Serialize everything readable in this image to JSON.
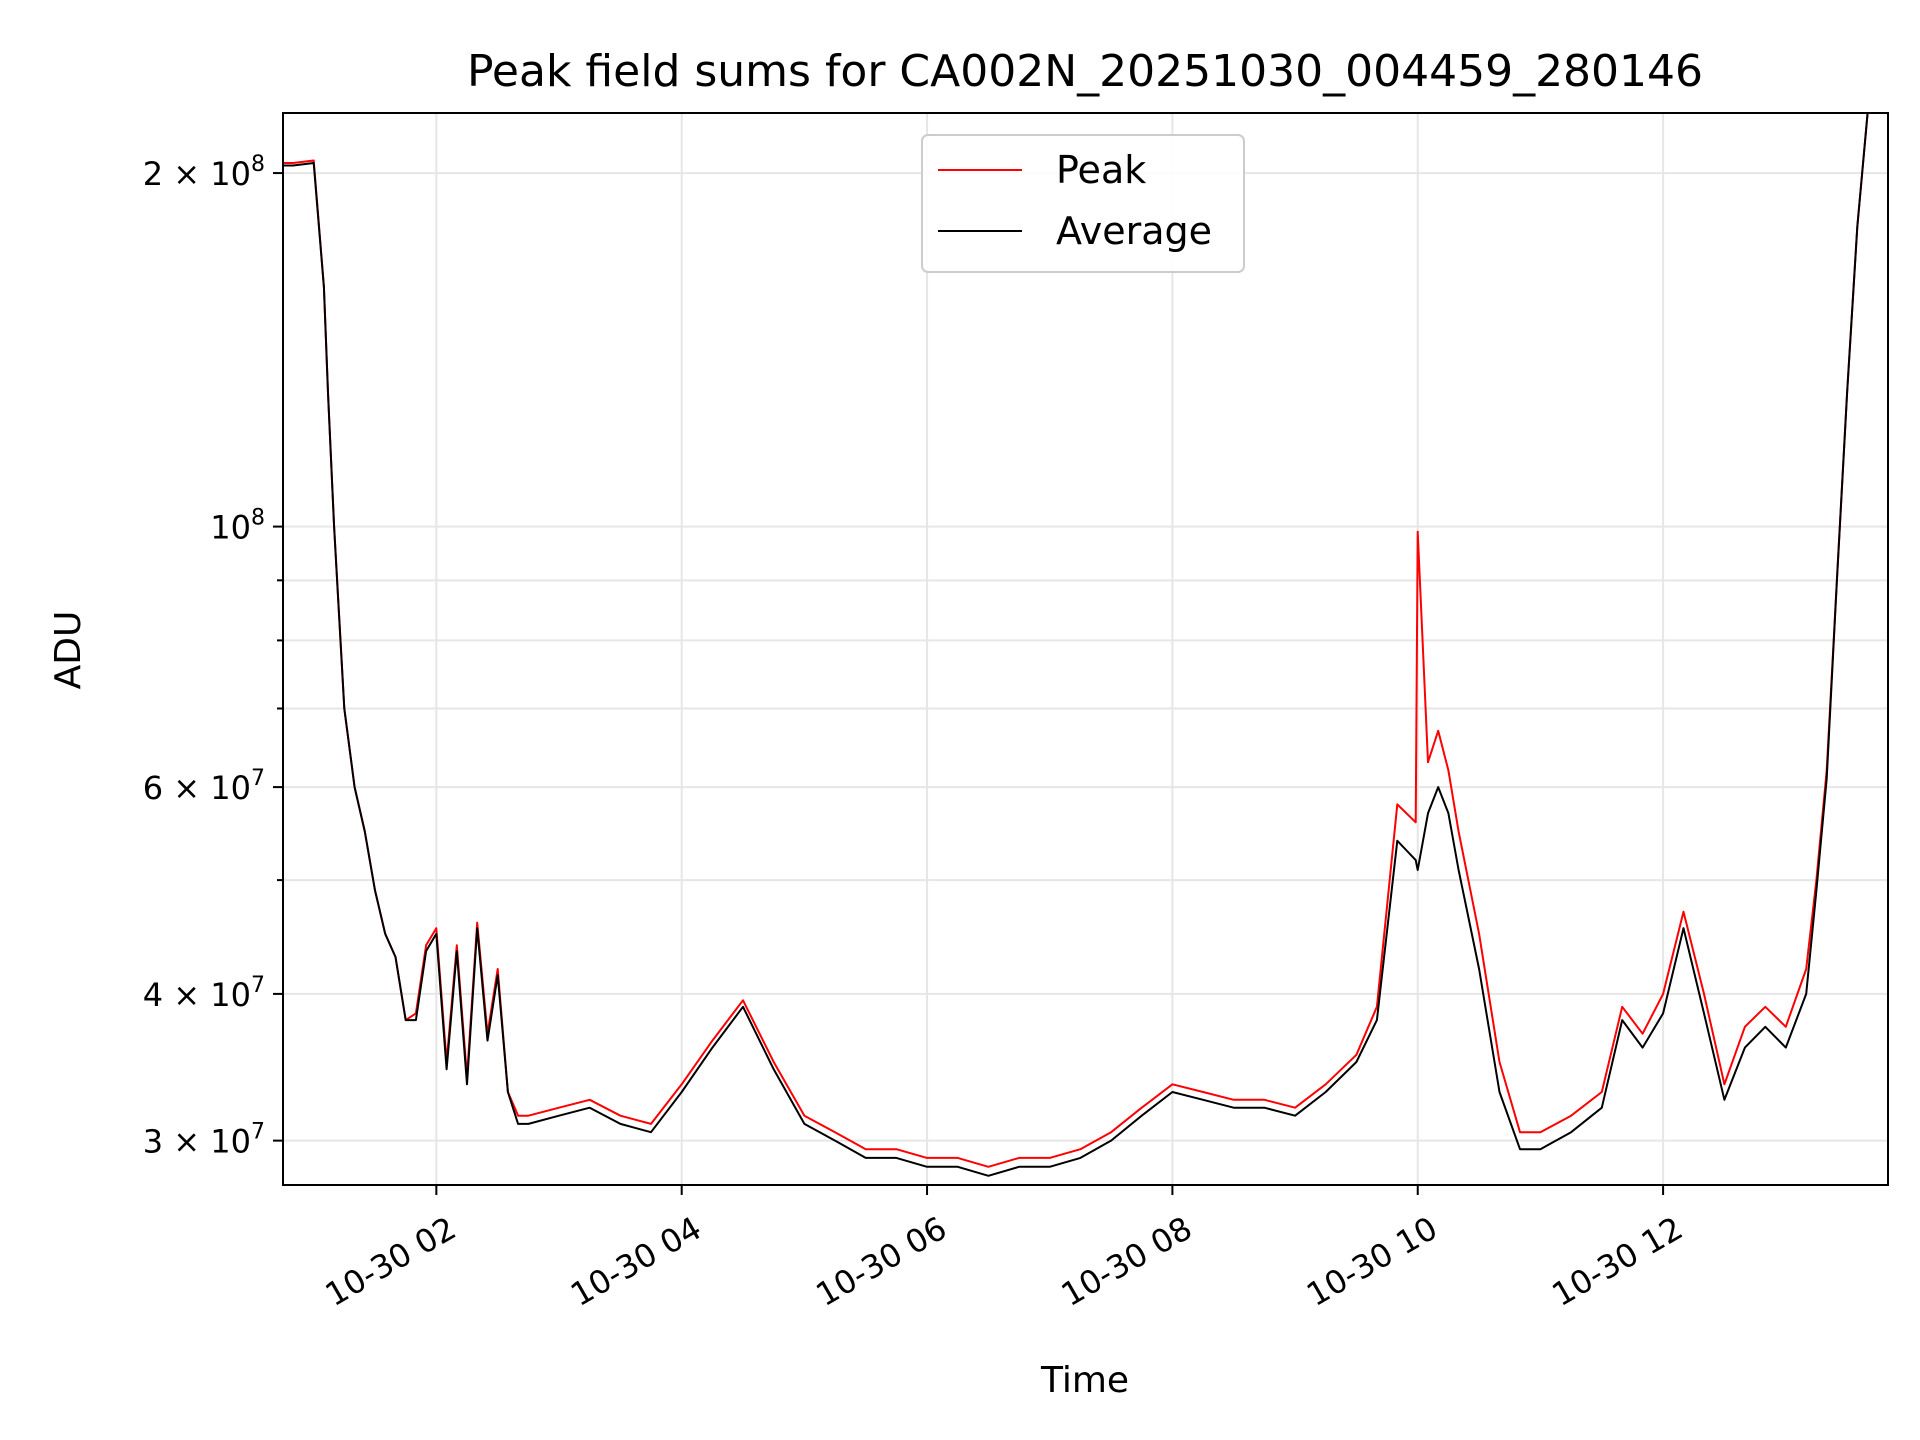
{
  "chart_data": {
    "type": "line",
    "title": "Peak field sums for CA002N_20251030_004459_280146",
    "xlabel": "Time",
    "ylabel": "ADU",
    "x_unit": "time (hours on 2025-10-30)",
    "xlim": [
      "2025-10-30 00:45",
      "2025-10-30 13:50"
    ],
    "ylim": [
      27500000,
      225000000
    ],
    "yscale": "log",
    "grid": true,
    "legend_position": "upper center",
    "x_tick_labels": [
      "10-30 02",
      "10-30 04",
      "10-30 06",
      "10-30 08",
      "10-30 10",
      "10-30 12"
    ],
    "y_tick_labels": [
      "2 × 10⁸",
      "10⁸",
      "6 × 10⁷",
      "4 × 10⁷",
      "3 × 10⁷"
    ],
    "series": [
      {
        "name": "Peak",
        "color": "#ff0000",
        "x": [
          "00:45",
          "00:50",
          "01:00",
          "01:05",
          "01:07",
          "01:10",
          "01:15",
          "01:20",
          "01:25",
          "01:30",
          "01:35",
          "01:40",
          "01:45",
          "01:50",
          "01:55",
          "02:00",
          "02:05",
          "02:10",
          "02:15",
          "02:20",
          "02:25",
          "02:30",
          "02:35",
          "02:40",
          "02:45",
          "03:00",
          "03:15",
          "03:30",
          "03:45",
          "04:00",
          "04:15",
          "04:30",
          "04:45",
          "05:00",
          "05:15",
          "05:30",
          "05:45",
          "06:00",
          "06:15",
          "06:30",
          "06:45",
          "07:00",
          "07:15",
          "07:30",
          "07:45",
          "08:00",
          "08:15",
          "08:30",
          "08:45",
          "09:00",
          "09:15",
          "09:30",
          "09:40",
          "09:50",
          "09:59",
          "10:00",
          "10:05",
          "10:10",
          "10:15",
          "10:20",
          "10:30",
          "10:40",
          "10:50",
          "11:00",
          "11:15",
          "11:30",
          "11:40",
          "11:50",
          "12:00",
          "12:10",
          "12:20",
          "12:30",
          "12:40",
          "12:50",
          "13:00",
          "13:10",
          "13:15",
          "13:20",
          "13:25",
          "13:30",
          "13:35",
          "13:40",
          "13:50"
        ],
        "values": [
          204000000,
          204000000,
          205000000,
          160000000,
          130000000,
          100000000,
          70000000,
          60000000,
          55000000,
          49000000,
          45000000,
          43000000,
          38000000,
          38500000,
          44000000,
          45500000,
          35000000,
          44000000,
          34000000,
          46000000,
          37000000,
          42000000,
          33000000,
          31500000,
          31500000,
          32000000,
          32500000,
          31500000,
          31000000,
          33500000,
          36500000,
          39500000,
          35000000,
          31500000,
          30500000,
          29500000,
          29500000,
          29000000,
          29000000,
          28500000,
          29000000,
          29000000,
          29500000,
          30500000,
          32000000,
          33500000,
          33000000,
          32500000,
          32500000,
          32000000,
          33500000,
          35500000,
          39000000,
          58000000,
          56000000,
          99000000,
          63000000,
          67000000,
          62000000,
          55000000,
          45000000,
          35000000,
          30500000,
          30500000,
          31500000,
          33000000,
          39000000,
          37000000,
          40000000,
          47000000,
          40000000,
          33500000,
          37500000,
          39000000,
          37500000,
          42000000,
          50000000,
          62000000,
          90000000,
          130000000,
          180000000,
          225000000,
          225000000
        ]
      },
      {
        "name": "Average",
        "color": "#000000",
        "x": [
          "00:45",
          "00:50",
          "01:00",
          "01:05",
          "01:07",
          "01:10",
          "01:15",
          "01:20",
          "01:25",
          "01:30",
          "01:35",
          "01:40",
          "01:45",
          "01:50",
          "01:55",
          "02:00",
          "02:05",
          "02:10",
          "02:15",
          "02:20",
          "02:25",
          "02:30",
          "02:35",
          "02:40",
          "02:45",
          "03:00",
          "03:15",
          "03:30",
          "03:45",
          "04:00",
          "04:15",
          "04:30",
          "04:45",
          "05:00",
          "05:15",
          "05:30",
          "05:45",
          "06:00",
          "06:15",
          "06:30",
          "06:45",
          "07:00",
          "07:15",
          "07:30",
          "07:45",
          "08:00",
          "08:15",
          "08:30",
          "08:45",
          "09:00",
          "09:15",
          "09:30",
          "09:40",
          "09:50",
          "09:59",
          "10:00",
          "10:05",
          "10:10",
          "10:15",
          "10:20",
          "10:30",
          "10:40",
          "10:50",
          "11:00",
          "11:15",
          "11:30",
          "11:40",
          "11:50",
          "12:00",
          "12:10",
          "12:20",
          "12:30",
          "12:40",
          "12:50",
          "13:00",
          "13:10",
          "13:15",
          "13:20",
          "13:25",
          "13:30",
          "13:35",
          "13:40",
          "13:50"
        ],
        "values": [
          203000000,
          203000000,
          204000000,
          160000000,
          130000000,
          100000000,
          70000000,
          60000000,
          55000000,
          49000000,
          45000000,
          43000000,
          38000000,
          38000000,
          43500000,
          45000000,
          34500000,
          43500000,
          33500000,
          45500000,
          36500000,
          41500000,
          33000000,
          31000000,
          31000000,
          31500000,
          32000000,
          31000000,
          30500000,
          33000000,
          36000000,
          39000000,
          34500000,
          31000000,
          30000000,
          29000000,
          29000000,
          28500000,
          28500000,
          28000000,
          28500000,
          28500000,
          29000000,
          30000000,
          31500000,
          33000000,
          32500000,
          32000000,
          32000000,
          31500000,
          33000000,
          35000000,
          38000000,
          54000000,
          52000000,
          51000000,
          57000000,
          60000000,
          57000000,
          51000000,
          42000000,
          33000000,
          29500000,
          29500000,
          30500000,
          32000000,
          38000000,
          36000000,
          38500000,
          45500000,
          38500000,
          32500000,
          36000000,
          37500000,
          36000000,
          40000000,
          49000000,
          61000000,
          90000000,
          130000000,
          180000000,
          225000000,
          225000000
        ]
      }
    ]
  }
}
